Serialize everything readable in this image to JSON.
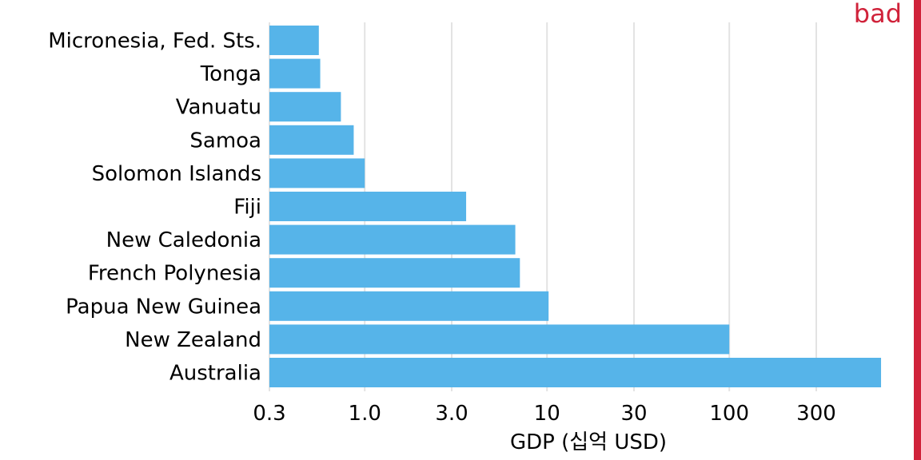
{
  "badge": {
    "label": "bad",
    "color": "#d0223a"
  },
  "chart_data": {
    "type": "bar",
    "orientation": "horizontal",
    "title": "",
    "xlabel": "GDP (십억 USD)",
    "ylabel": "",
    "x_scale": "log",
    "xlim": [
      0.3,
      700
    ],
    "x_ticks": [
      0.3,
      1,
      3,
      10,
      30,
      100,
      300
    ],
    "x_tick_labels": [
      "0.3",
      "1.0",
      "3.0",
      "10",
      "30",
      "100",
      "300"
    ],
    "grid": "vertical",
    "bar_color": "#56b4e9",
    "categories": [
      "Micronesia, Fed. Sts.",
      "Tonga",
      "Vanuatu",
      "Samoa",
      "Solomon Islands",
      "Fiji",
      "New Caledonia",
      "French Polynesia",
      "Papua New Guinea",
      "New Zealand",
      "Australia"
    ],
    "values": [
      0.56,
      0.57,
      0.74,
      0.87,
      1.0,
      3.6,
      6.7,
      7.1,
      10.2,
      100,
      680
    ]
  }
}
